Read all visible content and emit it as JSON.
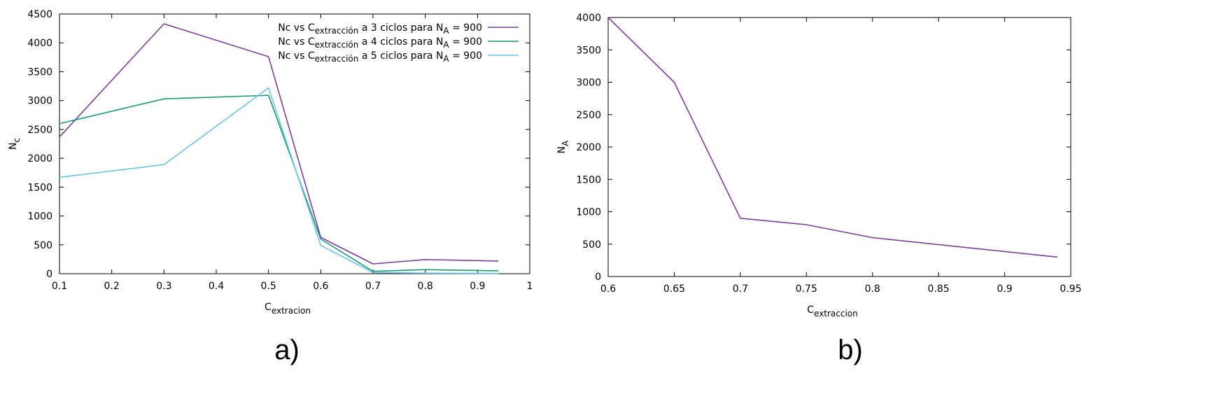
{
  "chart_data": [
    {
      "type": "line",
      "caption": "a)",
      "xlabel": {
        "base": "C",
        "sub": "extracion"
      },
      "ylabel": {
        "base": "N",
        "sub": "c"
      },
      "xlim": [
        0.1,
        1
      ],
      "ylim": [
        0,
        4500
      ],
      "xticks": [
        "0.1",
        "0.2",
        "0.3",
        "0.4",
        "0.5",
        "0.6",
        "0.7",
        "0.8",
        "0.9",
        "1"
      ],
      "xtick_values": [
        0.1,
        0.2,
        0.3,
        0.4,
        0.5,
        0.6,
        0.7,
        0.8,
        0.9,
        1
      ],
      "yticks": [
        "0",
        "500",
        "1000",
        "1500",
        "2000",
        "2500",
        "3000",
        "3500",
        "4000",
        "4500"
      ],
      "ytick_values": [
        0,
        500,
        1000,
        1500,
        2000,
        2500,
        3000,
        3500,
        4000,
        4500
      ],
      "grid": false,
      "legend_position": "top-right",
      "series": [
        {
          "name": "Nc vs Cextracción a 3 ciclos para NA = 900",
          "legend": {
            "p1": "Nc vs C",
            "sub1": "extracción",
            "p2": " a 3 ciclos para N",
            "sub2": "A",
            "p3": " = 900"
          },
          "color": "#7b3f96",
          "x": [
            0.1,
            0.3,
            0.5,
            0.6,
            0.7,
            0.8,
            0.94
          ],
          "y": [
            2370,
            4330,
            3760,
            630,
            170,
            245,
            220
          ]
        },
        {
          "name": "Nc vs Cextracción a 4 ciclos para NA = 900",
          "legend": {
            "p1": "Nc vs C",
            "sub1": "extracción",
            "p2": " a 4 ciclos para N",
            "sub2": "A",
            "p3": " = 900"
          },
          "color": "#1a9a73",
          "x": [
            0.1,
            0.3,
            0.5,
            0.6,
            0.7,
            0.8,
            0.94
          ],
          "y": [
            2600,
            3030,
            3090,
            600,
            40,
            70,
            50
          ]
        },
        {
          "name": "Nc vs Cextracción a 5 ciclos para NA = 900",
          "legend": {
            "p1": "Nc vs C",
            "sub1": "extracción",
            "p2": " a 5 ciclos para N",
            "sub2": "A",
            "p3": " = 900"
          },
          "color": "#6cc4e6",
          "x": [
            0.1,
            0.3,
            0.5,
            0.6,
            0.7,
            0.8,
            0.94
          ],
          "y": [
            1670,
            1890,
            3220,
            490,
            20,
            10,
            5
          ]
        }
      ]
    },
    {
      "type": "line",
      "caption": "b)",
      "xlabel": {
        "base": "C",
        "sub": "extraccion"
      },
      "ylabel": {
        "base": "N",
        "sub": "A"
      },
      "xlim": [
        0.6,
        0.95
      ],
      "ylim": [
        0,
        4000
      ],
      "xticks": [
        "0.6",
        "0.65",
        "0.7",
        "0.75",
        "0.8",
        "0.85",
        "0.9",
        "0.95"
      ],
      "xtick_values": [
        0.6,
        0.65,
        0.7,
        0.75,
        0.8,
        0.85,
        0.9,
        0.95
      ],
      "yticks": [
        "0",
        "500",
        "1000",
        "1500",
        "2000",
        "2500",
        "3000",
        "3500",
        "4000"
      ],
      "ytick_values": [
        0,
        500,
        1000,
        1500,
        2000,
        2500,
        3000,
        3500,
        4000
      ],
      "grid": false,
      "series": [
        {
          "color": "#7b3f96",
          "x": [
            0.6,
            0.65,
            0.7,
            0.75,
            0.8,
            0.94
          ],
          "y": [
            4000,
            3000,
            900,
            800,
            600,
            300
          ]
        }
      ]
    }
  ]
}
